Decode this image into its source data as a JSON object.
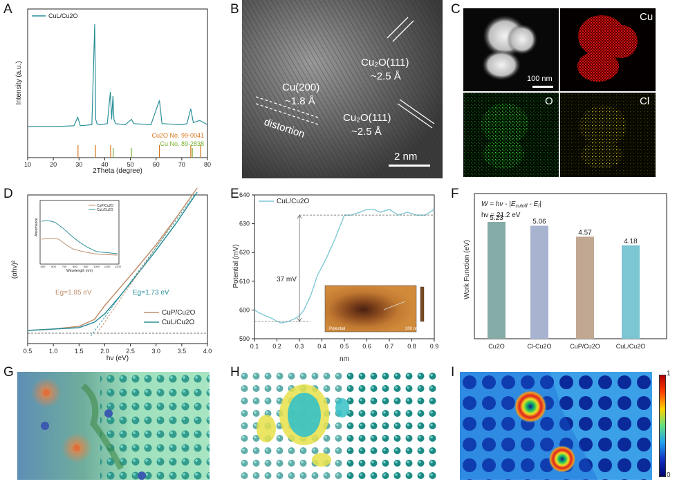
{
  "panels": {
    "A": "A",
    "B": "B",
    "C": "C",
    "D": "D",
    "E": "E",
    "F": "F",
    "G": "G",
    "H": "H",
    "I": "I"
  },
  "colors": {
    "teal": "#2a8f98",
    "tan": "#c08f6d",
    "lightblue": "#7fc8d6",
    "orange": "#d9741b",
    "green": "#78b02e"
  },
  "chart_data": [
    {
      "panel": "A",
      "type": "line",
      "title": "",
      "xlabel": "2Theta (degree)",
      "ylabel": "Intensity (a.u.)",
      "xlim": [
        10,
        80
      ],
      "xticks": [
        10,
        20,
        30,
        40,
        50,
        60,
        70,
        80
      ],
      "legend": "top-left",
      "series": [
        {
          "name": "CuL/Cu2O",
          "x": [
            10,
            20,
            28,
            29.5,
            30.5,
            35,
            36.1,
            36.5,
            37,
            38,
            41,
            42.2,
            42.7,
            43.2,
            43.6,
            44.2,
            48,
            50.4,
            51.3,
            58,
            61.3,
            62.3,
            70,
            72,
            73.5,
            74.5,
            77,
            80
          ],
          "y": [
            0.03,
            0.03,
            0.04,
            0.12,
            0.04,
            0.05,
            1.0,
            0.1,
            0.06,
            0.05,
            0.06,
            0.36,
            0.1,
            0.32,
            0.1,
            0.06,
            0.05,
            0.1,
            0.06,
            0.05,
            0.28,
            0.06,
            0.05,
            0.06,
            0.2,
            0.07,
            0.09,
            0.05
          ]
        }
      ],
      "reference_lines": [
        {
          "name": "Cu2O No. 99-0041",
          "color": "#d9741b",
          "x": [
            29.6,
            36.4,
            42.3,
            61.3,
            73.5,
            77.3
          ]
        },
        {
          "name": "Cu No. 89-2838",
          "color": "#78b02e",
          "x": [
            43.3,
            50.4,
            74.1
          ]
        }
      ]
    },
    {
      "panel": "D",
      "type": "line",
      "title": "",
      "xlabel": "hν (eV)",
      "ylabel": "(αhv)²",
      "xlim": [
        0.5,
        4.0
      ],
      "xticks": [
        0.5,
        1.0,
        1.5,
        2.0,
        2.5,
        3.0,
        3.5,
        4.0
      ],
      "legend": "bottom-right",
      "annotations": [
        "Eg=1.85 eV",
        "Eg=1.73 eV"
      ],
      "series": [
        {
          "name": "CuP/Cu2O",
          "x": [
            0.5,
            1.0,
            1.5,
            1.8,
            2.0,
            2.3,
            2.6,
            3.0,
            3.4,
            3.8
          ],
          "y": [
            0.02,
            0.03,
            0.05,
            0.1,
            0.2,
            0.33,
            0.46,
            0.64,
            0.84,
            1.05
          ]
        },
        {
          "name": "CuL/Cu2O",
          "x": [
            0.5,
            1.0,
            1.5,
            1.8,
            2.0,
            2.3,
            2.6,
            3.0,
            3.4,
            3.8
          ],
          "y": [
            0.02,
            0.03,
            0.04,
            0.08,
            0.14,
            0.27,
            0.41,
            0.6,
            0.8,
            1.02
          ]
        }
      ],
      "inset": {
        "xlabel": "Wavelength (nm)",
        "ylabel": "Absorbance",
        "xticks": [
          500,
          600,
          700,
          800,
          900,
          1000,
          1100,
          1200
        ],
        "legend": [
          "CuP/Cu2O",
          "CuL/Cu2O"
        ]
      }
    },
    {
      "panel": "E",
      "type": "line",
      "title": "",
      "xlabel": "nm",
      "ylabel": "Potential (mV)",
      "xlim": [
        0.1,
        0.9
      ],
      "ylim": [
        590,
        640
      ],
      "xticks": [
        0.1,
        0.2,
        0.3,
        0.4,
        0.5,
        0.6,
        0.7,
        0.8,
        0.9
      ],
      "yticks": [
        590,
        600,
        610,
        620,
        630,
        640
      ],
      "legend": "top-left",
      "annotations": [
        "37 mV"
      ],
      "series": [
        {
          "name": "CuL/Cu2O",
          "x": [
            0.1,
            0.12,
            0.15,
            0.18,
            0.2,
            0.22,
            0.25,
            0.28,
            0.3,
            0.32,
            0.35,
            0.38,
            0.42,
            0.46,
            0.5,
            0.53,
            0.57,
            0.6,
            0.63,
            0.66,
            0.7,
            0.74,
            0.78,
            0.82,
            0.86,
            0.9
          ],
          "y": [
            600,
            599,
            598,
            597,
            596,
            595.5,
            596,
            597,
            598,
            600,
            605,
            612,
            618,
            625,
            633,
            633,
            634,
            635,
            635,
            634,
            635,
            633,
            634,
            633,
            633,
            635
          ]
        }
      ],
      "inset_labels": {
        "potential": "Potential",
        "scale": "200 nm"
      }
    },
    {
      "panel": "F",
      "type": "bar",
      "title": "",
      "xlabel": "",
      "ylabel": "Work Function (eV)",
      "equation": "W = hν - |E_cutoff - E_f|",
      "equation2": "hν = 21.2 eV",
      "categories": [
        "Cu2O",
        "Cl-Cu2O",
        "CuP/Cu2O",
        "CuL/Cu2O"
      ],
      "values": [
        5.23,
        5.06,
        4.57,
        4.18
      ],
      "value_labels": [
        "5.23",
        "5.06",
        "4.57",
        "4.18"
      ],
      "bar_colors": [
        "#84aba6",
        "#a7b3cf",
        "#c1a892",
        "#7cc5d3"
      ],
      "ylim": [
        0,
        6.5
      ]
    }
  ],
  "panelA": {
    "legend": "CuL/Cu2O",
    "xlabel": "2Theta (degree)",
    "ylabel": "Intensity (a.u.)",
    "ref1": "Cu2O No. 99-0041",
    "ref2": "Cu No. 89-2838"
  },
  "panelB": {
    "lbl1a": "Cu₂O(111)",
    "lbl1b": "~2.5 Å",
    "lbl2a": "Cu(200)",
    "lbl2b": "~1.8 Å",
    "lbl3": "distortion",
    "lbl4a": "Cu₂O(111)",
    "lbl4b": "~2.5 Å",
    "scale": "2 nm"
  },
  "panelC": {
    "cu": "Cu",
    "o": "O",
    "cl": "Cl",
    "scale": "100 nm"
  },
  "panelD": {
    "ylabel": "(αhv)²",
    "xlabel": "hν (eV)",
    "eg1": "Eg=1.85 eV",
    "eg2": "Eg=1.73 eV",
    "leg1": "CuP/Cu2O",
    "leg2": "CuL/Cu2O",
    "inset_leg1": "CuP/Cu2O",
    "inset_leg2": "CuL/Cu2O",
    "inset_ylabel": "Absorbance",
    "inset_xlabel": "Wavelength (nm)"
  },
  "panelE": {
    "legend": "CuL/Cu2O",
    "ylabel": "Potential (mV)",
    "xlabel": "nm",
    "dv": "37 mV",
    "potential": "Potential",
    "scale": "200 nm"
  },
  "panelF": {
    "eq1": "W = hν - |E",
    "eq1b": "cutoff",
    "eq1c": " - E",
    "eq1d": "f",
    "eq1e": "|",
    "eq2": "hν = 21.2 eV",
    "ylabel": "Work Function (eV)"
  },
  "panelI": {
    "cb_max": "1",
    "cb_min": "0"
  }
}
